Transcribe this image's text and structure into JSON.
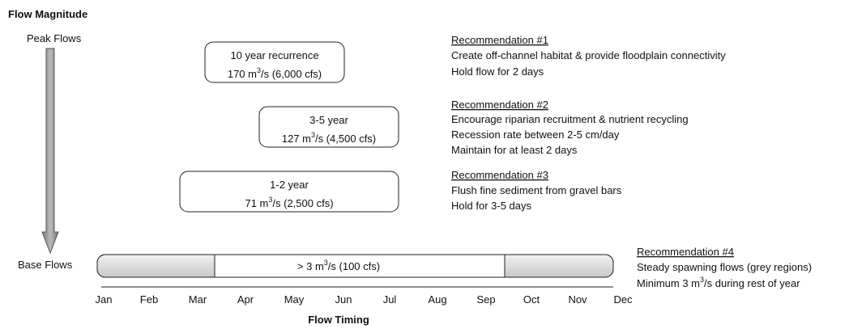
{
  "title": "Flow Magnitude",
  "y_axis": {
    "top": "Peak Flows",
    "bottom": "Base Flows"
  },
  "x_axis": {
    "title": "Flow Timing",
    "months": [
      "Jan",
      "Feb",
      "Mar",
      "Apr",
      "May",
      "Jun",
      "Jul",
      "Aug",
      "Sep",
      "Oct",
      "Nov",
      "Dec"
    ]
  },
  "boxes": [
    {
      "line1": "10 year recurrence",
      "line2": [
        "170 m",
        "3",
        "/s (6,000 cfs)"
      ]
    },
    {
      "line1": "3-5 year",
      "line2": [
        "127 m",
        "3",
        "/s (4,500 cfs)"
      ]
    },
    {
      "line1": "1-2 year",
      "line2": [
        "71 m",
        "3",
        "/s (2,500 cfs)"
      ]
    }
  ],
  "base_bar": [
    "> 3 m",
    "3",
    "/s (100 cfs)"
  ],
  "recommendations": [
    {
      "heading": "Recommendation #1",
      "lines": [
        "Create off-channel habitat & provide floodplain connectivity",
        "Hold flow for 2 days"
      ]
    },
    {
      "heading": "Recommendation #2",
      "lines": [
        "Encourage riparian recruitment & nutrient recycling",
        "Recession rate between 2-5 cm/day",
        "Maintain for at least 2 days"
      ]
    },
    {
      "heading": "Recommendation #3",
      "lines": [
        "Flush fine sediment from gravel bars",
        "Hold for 3-5 days"
      ]
    },
    {
      "heading": "Recommendation #4",
      "lines": [
        "Steady spawning flows (grey regions)"
      ],
      "last_line": [
        "Minimum 3 m",
        "3",
        "/s during rest of year"
      ]
    }
  ]
}
